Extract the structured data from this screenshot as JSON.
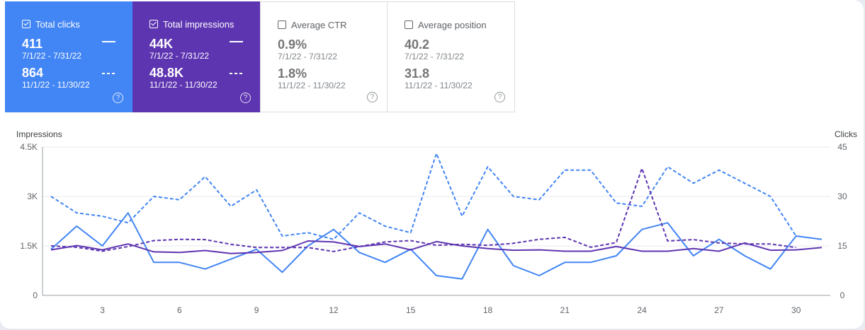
{
  "cards": [
    {
      "label": "Total clicks",
      "checked": true,
      "v1": "411",
      "r1": "7/1/22 - 7/31/22",
      "v2": "864",
      "r2": "11/1/22 - 11/30/22",
      "color": "#4285f4"
    },
    {
      "label": "Total impressions",
      "checked": true,
      "v1": "44K",
      "r1": "7/1/22 - 7/31/22",
      "v2": "48.8K",
      "r2": "11/1/22 - 11/30/22",
      "color": "#5e35b1"
    },
    {
      "label": "Average CTR",
      "checked": false,
      "v1": "0.9%",
      "r1": "7/1/22 - 7/31/22",
      "v2": "1.8%",
      "r2": "11/1/22 - 11/30/22"
    },
    {
      "label": "Average position",
      "checked": false,
      "v1": "40.2",
      "r1": "7/1/22 - 7/31/22",
      "v2": "31.8",
      "r2": "11/1/22 - 11/30/22"
    }
  ],
  "help_glyph": "?",
  "chart_data": {
    "type": "line",
    "y_left_label": "Impressions",
    "y_right_label": "Clicks",
    "y_left_ticks": [
      "0",
      "1.5K",
      "3K",
      "4.5K"
    ],
    "y_right_ticks": [
      "0",
      "15",
      "30",
      "45"
    ],
    "ylim_left": [
      0,
      4500
    ],
    "ylim_right": [
      0,
      45
    ],
    "x_tick_labels": [
      "3",
      "6",
      "9",
      "12",
      "15",
      "18",
      "21",
      "24",
      "27",
      "30"
    ],
    "x": [
      1,
      2,
      3,
      4,
      5,
      6,
      7,
      8,
      9,
      10,
      11,
      12,
      13,
      14,
      15,
      16,
      17,
      18,
      19,
      20,
      21,
      22,
      23,
      24,
      25,
      26,
      27,
      28,
      29,
      30,
      31
    ],
    "grid": true,
    "series": [
      {
        "axis": "right",
        "style": "solid",
        "color": "#4285f4",
        "values": [
          14,
          21,
          15,
          25,
          10,
          10,
          8,
          11,
          14,
          7,
          15,
          20,
          13,
          10,
          14,
          6,
          5,
          20,
          9,
          6,
          10,
          10,
          12,
          20,
          22,
          12,
          17,
          12,
          8,
          18,
          17
        ]
      },
      {
        "axis": "right",
        "style": "dashed",
        "color": "#4285f4",
        "values": [
          30,
          25,
          24,
          22,
          30,
          29,
          36,
          27,
          32,
          18,
          19,
          17,
          25,
          21,
          19,
          43,
          24,
          39,
          30,
          29,
          38,
          38,
          28,
          27,
          39,
          34,
          38,
          34,
          30,
          18,
          null
        ]
      },
      {
        "axis": "left",
        "style": "solid",
        "color": "#5e35b1",
        "values": [
          1380,
          1510,
          1380,
          1560,
          1320,
          1300,
          1360,
          1270,
          1300,
          1360,
          1650,
          1620,
          1480,
          1560,
          1380,
          1630,
          1500,
          1420,
          1370,
          1380,
          1340,
          1340,
          1480,
          1340,
          1340,
          1420,
          1340,
          1590,
          1370,
          1380,
          1450
        ]
      },
      {
        "axis": "left",
        "style": "dashed",
        "color": "#5e35b1",
        "values": [
          1500,
          1460,
          1340,
          1480,
          1660,
          1700,
          1690,
          1550,
          1450,
          1450,
          1450,
          1330,
          1480,
          1620,
          1660,
          1520,
          1550,
          1520,
          1580,
          1700,
          1760,
          1460,
          1600,
          3850,
          1650,
          1690,
          1590,
          1560,
          1560,
          1450,
          null
        ]
      }
    ]
  }
}
